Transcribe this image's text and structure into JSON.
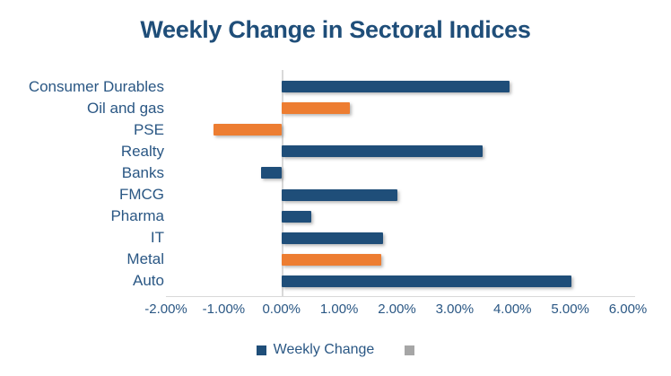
{
  "chart_data": {
    "type": "bar",
    "orientation": "horizontal",
    "title": "Weekly Change in Sectoral Indices",
    "categories": [
      "Consumer Durables",
      "Oil and gas",
      "PSE",
      "Realty",
      "Banks",
      "FMCG",
      "Pharma",
      "IT",
      "Metal",
      "Auto"
    ],
    "series": [
      {
        "name": "Weekly Change",
        "values": [
          3.95,
          1.18,
          -1.17,
          3.48,
          -0.36,
          2.0,
          0.51,
          1.76,
          1.73,
          5.02
        ]
      }
    ],
    "bar_colors": [
      "#1F4E79",
      "#ED7D31",
      "#ED7D31",
      "#1F4E79",
      "#1F4E79",
      "#1F4E79",
      "#1F4E79",
      "#1F4E79",
      "#ED7D31",
      "#1F4E79"
    ],
    "x_ticks": [
      {
        "value": -2,
        "label": "-2.00%"
      },
      {
        "value": -1,
        "label": "-1.00%"
      },
      {
        "value": 0,
        "label": "0.00%"
      },
      {
        "value": 1,
        "label": "1.00%"
      },
      {
        "value": 2,
        "label": "2.00%"
      },
      {
        "value": 3,
        "label": "3.00%"
      },
      {
        "value": 4,
        "label": "4.00%"
      },
      {
        "value": 5,
        "label": "5.00%"
      },
      {
        "value": 6,
        "label": "6.00%"
      }
    ],
    "xlim": [
      -2,
      6
    ],
    "grid": false,
    "legend": {
      "position": "bottom",
      "entries": [
        {
          "label": "Weekly Change",
          "color": "#1F4E79"
        },
        {
          "label": "",
          "color": "#A6A6A6"
        }
      ]
    },
    "colors": {
      "title_text": "#1F4E79",
      "label_text": "#2A5784",
      "axis_line": "#D9D9D9",
      "bar_blue": "#1F4E79",
      "bar_orange": "#ED7D31",
      "legend_gray": "#A6A6A6",
      "background": "#FFFFFF"
    }
  }
}
